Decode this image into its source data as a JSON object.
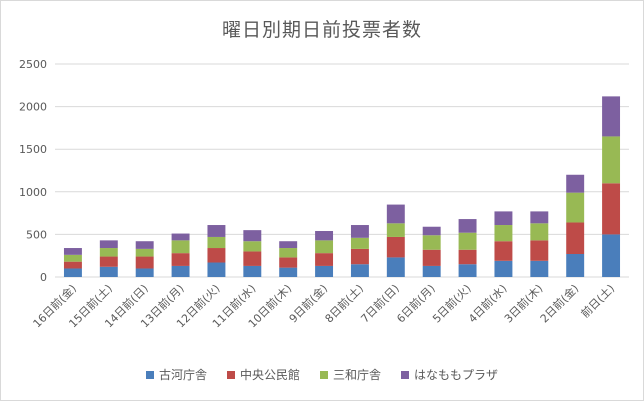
{
  "chart_data": {
    "type": "bar",
    "stacked": true,
    "title": "曜日別期日前投票者数",
    "categories": [
      "16日前(金)",
      "15日前(土)",
      "14日前(日)",
      "13日前(月)",
      "12日前(火)",
      "11日前(水)",
      "10日前(木)",
      "9日前(金)",
      "8日前(土)",
      "7日前(日)",
      "6日前(月)",
      "5日前(火)",
      "4日前(水)",
      "3日前(木)",
      "2日前(金)",
      "前日(土)"
    ],
    "series": [
      {
        "name": "古河庁舎",
        "color": "#4a7ebb",
        "values": [
          100,
          120,
          100,
          130,
          170,
          130,
          110,
          130,
          150,
          230,
          130,
          150,
          190,
          190,
          270,
          500
        ]
      },
      {
        "name": "中央公民館",
        "color": "#be4b48",
        "values": [
          80,
          120,
          140,
          150,
          170,
          170,
          120,
          150,
          180,
          240,
          190,
          170,
          230,
          240,
          370,
          600
        ]
      },
      {
        "name": "三和庁舎",
        "color": "#98b954",
        "values": [
          80,
          100,
          90,
          150,
          130,
          120,
          110,
          150,
          130,
          160,
          170,
          200,
          190,
          200,
          350,
          550
        ]
      },
      {
        "name": "はなももプラザ",
        "color": "#7d60a0",
        "values": [
          80,
          90,
          90,
          80,
          140,
          130,
          80,
          110,
          150,
          220,
          100,
          160,
          160,
          140,
          210,
          470
        ]
      }
    ],
    "yticks": [
      "0",
      "500",
      "1000",
      "1500",
      "2000",
      "2500"
    ],
    "ylim": [
      0,
      2500
    ],
    "grid": true,
    "legend_position": "bottom"
  }
}
